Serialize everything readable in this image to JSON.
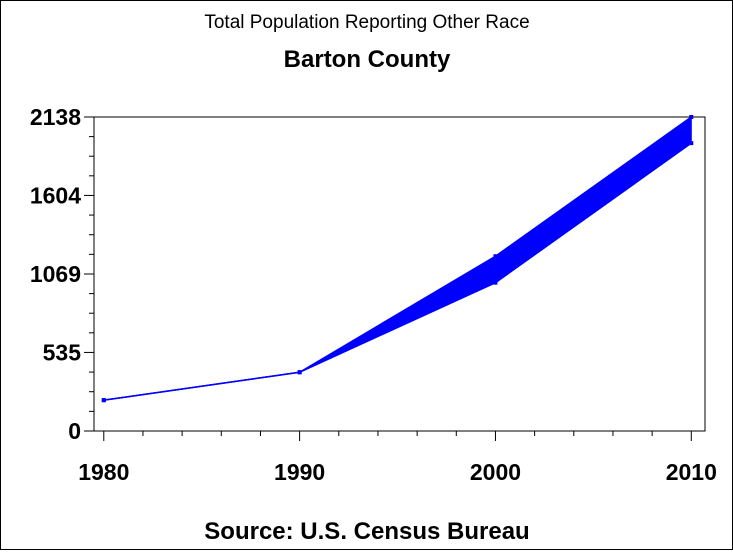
{
  "chart_data": {
    "type": "area",
    "title": "Total Population Reporting Other Race",
    "subtitle": "Barton County",
    "footnote": "Source: U.S. Census Bureau",
    "x": [
      1980,
      1990,
      2000,
      2010
    ],
    "x_tick_labels": [
      "1980",
      "1990",
      "2000",
      "2010"
    ],
    "y_tick_values": [
      0,
      535,
      1069,
      1604,
      2138
    ],
    "y_tick_labels": [
      "0",
      "535",
      "1069",
      "1604",
      "2138"
    ],
    "ylim": [
      0,
      2138
    ],
    "xlim": [
      1979.5,
      2010.7
    ],
    "color": "#0000ff",
    "series": [
      {
        "values": [
          210,
          400,
          1010,
          1960
        ]
      },
      {
        "values": [
          210,
          400,
          1190,
          2138
        ]
      }
    ],
    "grid": false
  }
}
